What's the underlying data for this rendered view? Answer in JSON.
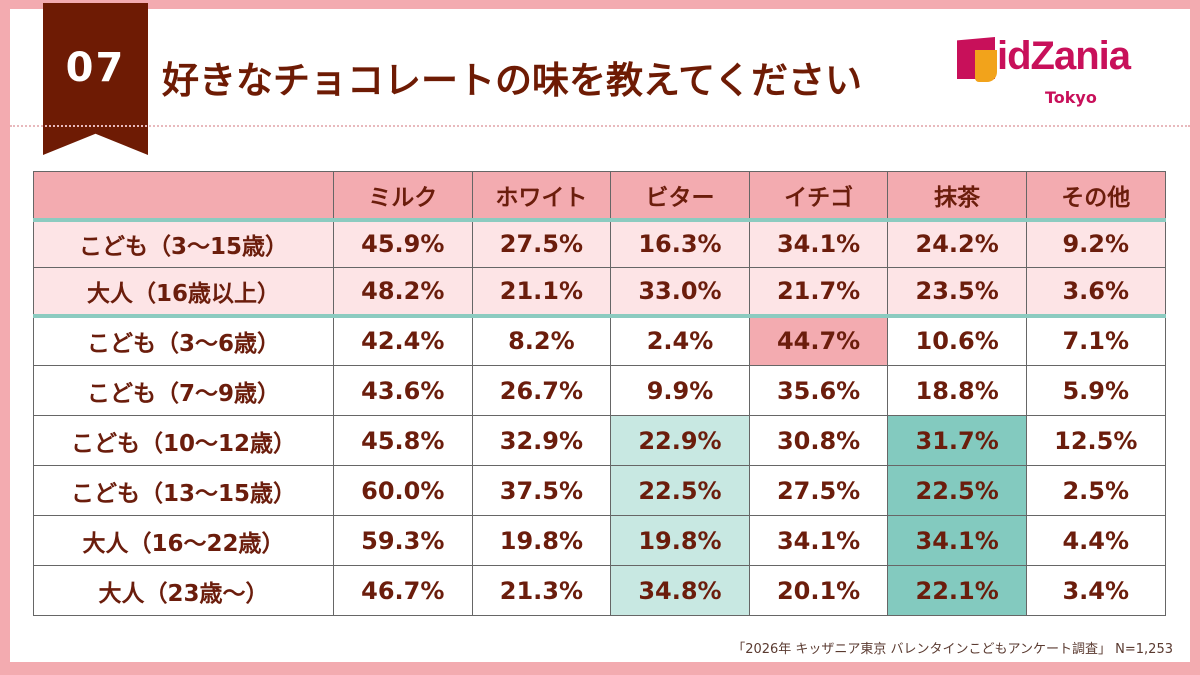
{
  "badge_number": "07",
  "title": "好きなチョコレートの味を教えてください",
  "logo": {
    "text": "KidZania",
    "sub": "Tokyo"
  },
  "colors": {
    "brown": "#6e1b04",
    "pink": "#f3abb0",
    "light_pink": "#fde4e6",
    "teal_light": "#c8e8e2",
    "teal_dark": "#83cabf",
    "logo": "#c8105a"
  },
  "chart_data": {
    "type": "table",
    "columns": [
      "ミルク",
      "ホワイト",
      "ビター",
      "イチゴ",
      "抹茶",
      "その他"
    ],
    "rows": [
      {
        "label": "こども（3～15歳）",
        "values": [
          "45.9%",
          "27.5%",
          "16.3%",
          "34.1%",
          "24.2%",
          "9.2%"
        ],
        "summary": true
      },
      {
        "label": "大人（16歳以上）",
        "values": [
          "48.2%",
          "21.1%",
          "33.0%",
          "21.7%",
          "23.5%",
          "3.6%"
        ],
        "summary": true
      },
      {
        "label": "こども（3～6歳）",
        "values": [
          "42.4%",
          "8.2%",
          "2.4%",
          "44.7%",
          "10.6%",
          "7.1%"
        ],
        "highlight": {
          "3": "pink"
        }
      },
      {
        "label": "こども（7～9歳）",
        "values": [
          "43.6%",
          "26.7%",
          "9.9%",
          "35.6%",
          "18.8%",
          "5.9%"
        ]
      },
      {
        "label": "こども（10～12歳）",
        "values": [
          "45.8%",
          "32.9%",
          "22.9%",
          "30.8%",
          "31.7%",
          "12.5%"
        ],
        "highlight": {
          "2": "teal_light",
          "4": "teal_dark"
        }
      },
      {
        "label": "こども（13～15歳）",
        "values": [
          "60.0%",
          "37.5%",
          "22.5%",
          "27.5%",
          "22.5%",
          "2.5%"
        ],
        "highlight": {
          "2": "teal_light",
          "4": "teal_dark"
        }
      },
      {
        "label": "大人（16～22歳）",
        "values": [
          "59.3%",
          "19.8%",
          "19.8%",
          "34.1%",
          "34.1%",
          "4.4%"
        ],
        "highlight": {
          "2": "teal_light",
          "4": "teal_dark"
        }
      },
      {
        "label": "大人（23歳～）",
        "values": [
          "46.7%",
          "21.3%",
          "34.8%",
          "20.1%",
          "22.1%",
          "3.4%"
        ],
        "highlight": {
          "2": "teal_light",
          "4": "teal_dark"
        }
      }
    ]
  },
  "footnote": "「2026年 キッザニア東京 バレンタインこどもアンケート調査」 N=1,253"
}
